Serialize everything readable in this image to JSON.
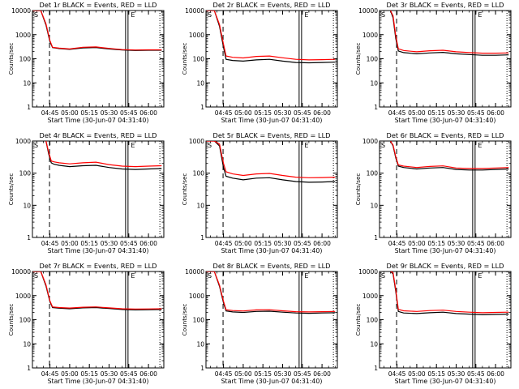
{
  "chart_data": [
    {
      "type": "line",
      "title": "Det 1r BLACK = Events, RED = LLD",
      "xlabel": "Start Time (30-Jun-07 04:31:40)",
      "ylabel": "Counts/sec",
      "yscale": "log",
      "xlim": [
        "04:31:40",
        "06:11:40"
      ],
      "ylim": [
        1,
        10000
      ],
      "x_ticks": [
        "04:45",
        "05:00",
        "05:15",
        "05:30",
        "05:45",
        "06:00"
      ],
      "y_ticks": [
        "1",
        "10",
        "100",
        "1000",
        "10000"
      ],
      "markers": {
        "S": "04:31:40",
        "E": "05:43:30"
      },
      "vlines": [
        {
          "style": "dashed",
          "x": "04:44:40"
        },
        {
          "style": "double",
          "x": "05:43:30"
        },
        {
          "style": "dotted",
          "x": "06:08:40"
        }
      ],
      "series": [
        {
          "color": "#000000",
          "x": [
            "04:32",
            "04:38",
            "04:42",
            "04:45",
            "04:47",
            "04:52",
            "05:00",
            "05:10",
            "05:20",
            "05:30",
            "05:40",
            "05:50",
            "06:00",
            "06:10"
          ],
          "values": [
            10000,
            10000,
            2500,
            500,
            290,
            265,
            245,
            280,
            290,
            255,
            230,
            220,
            225,
            225
          ]
        },
        {
          "color": "#ff0000",
          "x": [
            "04:32",
            "04:38",
            "04:42",
            "04:45",
            "04:47",
            "04:52",
            "05:00",
            "05:10",
            "05:20",
            "05:30",
            "05:40",
            "05:50",
            "06:00",
            "06:10"
          ],
          "values": [
            10000,
            10000,
            2800,
            560,
            300,
            275,
            255,
            300,
            310,
            270,
            240,
            230,
            235,
            235
          ]
        }
      ]
    },
    {
      "type": "line",
      "title": "Det 2r BLACK = Events, RED = LLD",
      "xlabel": "Start Time (30-Jun-07 04:31:40)",
      "ylabel": "Counts/sec",
      "yscale": "log",
      "xlim": [
        "04:31:40",
        "06:11:40"
      ],
      "ylim": [
        1,
        10000
      ],
      "x_ticks": [
        "04:45",
        "05:00",
        "05:15",
        "05:30",
        "05:45",
        "06:00"
      ],
      "y_ticks": [
        "1",
        "10",
        "100",
        "1000",
        "10000"
      ],
      "markers": {
        "S": "04:31:40",
        "E": "05:43:30"
      },
      "vlines": [
        {
          "style": "dashed",
          "x": "04:44:40"
        },
        {
          "style": "double",
          "x": "05:43:30"
        },
        {
          "style": "dotted",
          "x": "06:08:40"
        }
      ],
      "series": [
        {
          "color": "#000000",
          "x": [
            "04:32",
            "04:38",
            "04:42",
            "04:45",
            "04:47",
            "04:52",
            "05:00",
            "05:10",
            "05:20",
            "05:30",
            "05:40",
            "05:50",
            "06:00",
            "06:10"
          ],
          "values": [
            10000,
            10000,
            2200,
            300,
            95,
            85,
            80,
            90,
            95,
            80,
            70,
            68,
            70,
            72
          ]
        },
        {
          "color": "#ff0000",
          "x": [
            "04:32",
            "04:38",
            "04:42",
            "04:45",
            "04:47",
            "04:52",
            "05:00",
            "05:10",
            "05:20",
            "05:30",
            "05:40",
            "05:50",
            "06:00",
            "06:10"
          ],
          "values": [
            10000,
            10000,
            2600,
            400,
            130,
            115,
            108,
            125,
            130,
            110,
            95,
            90,
            92,
            95
          ]
        }
      ]
    },
    {
      "type": "line",
      "title": "Det 3r BLACK = Events, RED = LLD",
      "xlabel": "Start Time (30-Jun-07 04:31:40)",
      "ylabel": "Counts/sec",
      "yscale": "log",
      "xlim": [
        "04:31:40",
        "06:11:40"
      ],
      "ylim": [
        1,
        10000
      ],
      "x_ticks": [
        "04:45",
        "05:00",
        "05:15",
        "05:30",
        "05:45",
        "06:00"
      ],
      "y_ticks": [
        "1",
        "10",
        "100",
        "1000",
        "10000"
      ],
      "markers": {
        "S": "04:31:40",
        "E": "05:43:30"
      },
      "vlines": [
        {
          "style": "dashed",
          "x": "04:44:40"
        },
        {
          "style": "double",
          "x": "05:43:30"
        },
        {
          "style": "dotted",
          "x": "06:08:40"
        }
      ],
      "series": [
        {
          "color": "#000000",
          "x": [
            "04:40",
            "04:42",
            "04:44",
            "04:46",
            "04:50",
            "05:00",
            "05:10",
            "05:20",
            "05:30",
            "05:40",
            "05:50",
            "06:00",
            "06:10"
          ],
          "values": [
            10000,
            5000,
            700,
            210,
            180,
            160,
            175,
            185,
            160,
            150,
            140,
            140,
            145
          ]
        },
        {
          "color": "#ff0000",
          "x": [
            "04:40",
            "04:42",
            "04:44",
            "04:46",
            "04:50",
            "05:00",
            "05:10",
            "05:20",
            "05:30",
            "05:40",
            "05:50",
            "06:00",
            "06:10"
          ],
          "values": [
            10000,
            6000,
            900,
            260,
            220,
            195,
            215,
            225,
            195,
            180,
            170,
            170,
            175
          ]
        }
      ]
    },
    {
      "type": "line",
      "title": "Det 4r BLACK = Events, RED = LLD",
      "xlabel": "Start Time (30-Jun-07 04:31:40)",
      "ylabel": "Counts/sec",
      "yscale": "log",
      "xlim": [
        "04:31:40",
        "06:11:40"
      ],
      "ylim": [
        1,
        1000
      ],
      "x_ticks": [
        "04:45",
        "05:00",
        "05:15",
        "05:30",
        "05:45",
        "06:00"
      ],
      "y_ticks": [
        "1",
        "10",
        "100",
        "1000"
      ],
      "markers": {
        "S": "04:31:40",
        "E": "05:43:30"
      },
      "vlines": [
        {
          "style": "dashed",
          "x": "04:44:40"
        },
        {
          "style": "double",
          "x": "05:43:30"
        },
        {
          "style": "dotted",
          "x": "06:08:40"
        }
      ],
      "series": [
        {
          "color": "#000000",
          "x": [
            "04:42",
            "04:44",
            "04:46",
            "04:48",
            "04:52",
            "05:00",
            "05:10",
            "05:20",
            "05:30",
            "05:40",
            "05:50",
            "06:00",
            "06:10"
          ],
          "values": [
            1000,
            400,
            210,
            190,
            175,
            160,
            170,
            175,
            150,
            135,
            130,
            135,
            140
          ]
        },
        {
          "color": "#ff0000",
          "x": [
            "04:42",
            "04:44",
            "04:46",
            "04:48",
            "04:52",
            "05:00",
            "05:10",
            "05:20",
            "05:30",
            "05:40",
            "05:50",
            "06:00",
            "06:10"
          ],
          "values": [
            1000,
            450,
            240,
            225,
            210,
            195,
            210,
            220,
            185,
            165,
            160,
            165,
            170
          ]
        }
      ]
    },
    {
      "type": "line",
      "title": "Det 5r BLACK = Events, RED = LLD",
      "xlabel": "Start Time (30-Jun-07 04:31:40)",
      "ylabel": "Counts/sec",
      "yscale": "log",
      "xlim": [
        "04:31:40",
        "06:11:40"
      ],
      "ylim": [
        1,
        1000
      ],
      "x_ticks": [
        "04:45",
        "05:00",
        "05:15",
        "05:30",
        "05:45",
        "06:00"
      ],
      "y_ticks": [
        "1",
        "10",
        "100",
        "1000"
      ],
      "markers": {
        "S": "04:31:40",
        "E": "05:43:30"
      },
      "vlines": [
        {
          "style": "dashed",
          "x": "04:44:40"
        },
        {
          "style": "double",
          "x": "05:43:30"
        },
        {
          "style": "dotted",
          "x": "06:08:40"
        }
      ],
      "series": [
        {
          "color": "#000000",
          "x": [
            "04:32",
            "04:38",
            "04:42",
            "04:45",
            "04:47",
            "04:52",
            "05:00",
            "05:10",
            "05:20",
            "05:30",
            "05:40",
            "05:50",
            "06:00",
            "06:10"
          ],
          "values": [
            1000,
            1000,
            700,
            150,
            80,
            70,
            62,
            70,
            72,
            62,
            55,
            52,
            53,
            55
          ]
        },
        {
          "color": "#ff0000",
          "x": [
            "04:32",
            "04:38",
            "04:42",
            "04:45",
            "04:47",
            "04:52",
            "05:00",
            "05:10",
            "05:20",
            "05:30",
            "05:40",
            "05:50",
            "06:00",
            "06:10"
          ],
          "values": [
            1000,
            1000,
            800,
            200,
            110,
            95,
            85,
            95,
            98,
            85,
            75,
            72,
            73,
            75
          ]
        }
      ]
    },
    {
      "type": "line",
      "title": "Det 6r BLACK = Events, RED = LLD",
      "xlabel": "Start Time (30-Jun-07 04:31:40)",
      "ylabel": "Counts/sec",
      "yscale": "log",
      "xlim": [
        "04:31:40",
        "06:11:40"
      ],
      "ylim": [
        1,
        1000
      ],
      "x_ticks": [
        "04:45",
        "05:00",
        "05:15",
        "05:30",
        "05:45",
        "06:00"
      ],
      "y_ticks": [
        "1",
        "10",
        "100",
        "1000"
      ],
      "markers": {
        "S": "04:31:40",
        "E": "05:43:30"
      },
      "vlines": [
        {
          "style": "dashed",
          "x": "04:44:40"
        },
        {
          "style": "double",
          "x": "05:43:30"
        },
        {
          "style": "dotted",
          "x": "06:08:40"
        }
      ],
      "series": [
        {
          "color": "#000000",
          "x": [
            "04:40",
            "04:42",
            "04:44",
            "04:46",
            "04:50",
            "05:00",
            "05:10",
            "05:20",
            "05:30",
            "05:40",
            "05:50",
            "06:00",
            "06:10"
          ],
          "values": [
            1000,
            700,
            300,
            165,
            150,
            135,
            145,
            150,
            130,
            125,
            125,
            130,
            135
          ]
        },
        {
          "color": "#ff0000",
          "x": [
            "04:40",
            "04:42",
            "04:44",
            "04:46",
            "04:50",
            "05:00",
            "05:10",
            "05:20",
            "05:30",
            "05:40",
            "05:50",
            "06:00",
            "06:10"
          ],
          "values": [
            1000,
            750,
            330,
            180,
            165,
            150,
            162,
            168,
            145,
            140,
            140,
            145,
            150
          ]
        }
      ]
    },
    {
      "type": "line",
      "title": "Det 7r BLACK = Events, RED = LLD",
      "xlabel": "Start Time (30-Jun-07 04:31:40)",
      "ylabel": "Counts/sec",
      "yscale": "log",
      "xlim": [
        "04:31:40",
        "06:11:40"
      ],
      "ylim": [
        1,
        10000
      ],
      "x_ticks": [
        "04:45",
        "05:00",
        "05:15",
        "05:30",
        "05:45",
        "06:00"
      ],
      "y_ticks": [
        "1",
        "10",
        "100",
        "1000",
        "10000"
      ],
      "markers": {
        "S": "04:31:40",
        "E": "05:43:30"
      },
      "vlines": [
        {
          "style": "dashed",
          "x": "04:44:40"
        },
        {
          "style": "double",
          "x": "05:43:30"
        },
        {
          "style": "dotted",
          "x": "06:08:40"
        }
      ],
      "series": [
        {
          "color": "#000000",
          "x": [
            "04:32",
            "04:38",
            "04:42",
            "04:45",
            "04:47",
            "04:52",
            "05:00",
            "05:10",
            "05:20",
            "05:30",
            "05:40",
            "05:50",
            "06:00",
            "06:10"
          ],
          "values": [
            10000,
            10000,
            2500,
            550,
            320,
            300,
            285,
            310,
            320,
            290,
            265,
            255,
            260,
            265
          ]
        },
        {
          "color": "#ff0000",
          "x": [
            "04:32",
            "04:38",
            "04:42",
            "04:45",
            "04:47",
            "04:52",
            "05:00",
            "05:10",
            "05:20",
            "05:30",
            "05:40",
            "05:50",
            "06:00",
            "06:10"
          ],
          "values": [
            10000,
            10000,
            2800,
            600,
            340,
            320,
            305,
            330,
            340,
            310,
            285,
            275,
            280,
            285
          ]
        }
      ]
    },
    {
      "type": "line",
      "title": "Det 8r BLACK = Events, RED = LLD",
      "xlabel": "Start Time (30-Jun-07 04:31:40)",
      "ylabel": "Counts/sec",
      "yscale": "log",
      "xlim": [
        "04:31:40",
        "06:11:40"
      ],
      "ylim": [
        1,
        10000
      ],
      "x_ticks": [
        "04:45",
        "05:00",
        "05:15",
        "05:30",
        "05:45",
        "06:00"
      ],
      "y_ticks": [
        "1",
        "10",
        "100",
        "1000",
        "10000"
      ],
      "markers": {
        "S": "04:31:40",
        "E": "05:43:30"
      },
      "vlines": [
        {
          "style": "dashed",
          "x": "04:44:40"
        },
        {
          "style": "double",
          "x": "05:43:30"
        },
        {
          "style": "dotted",
          "x": "06:08:40"
        }
      ],
      "series": [
        {
          "color": "#000000",
          "x": [
            "04:32",
            "04:38",
            "04:42",
            "04:45",
            "04:47",
            "04:52",
            "05:00",
            "05:10",
            "05:20",
            "05:30",
            "05:40",
            "05:50",
            "06:00",
            "06:10"
          ],
          "values": [
            10000,
            10000,
            2400,
            500,
            230,
            210,
            200,
            220,
            225,
            205,
            190,
            185,
            190,
            195
          ]
        },
        {
          "color": "#ff0000",
          "x": [
            "04:32",
            "04:38",
            "04:42",
            "04:45",
            "04:47",
            "04:52",
            "05:00",
            "05:10",
            "05:20",
            "05:30",
            "05:40",
            "05:50",
            "06:00",
            "06:10"
          ],
          "values": [
            10000,
            10000,
            2700,
            580,
            260,
            240,
            230,
            255,
            260,
            235,
            215,
            210,
            215,
            220
          ]
        }
      ]
    },
    {
      "type": "line",
      "title": "Det 9r BLACK = Events, RED = LLD",
      "xlabel": "Start Time (30-Jun-07 04:31:40)",
      "ylabel": "Counts/sec",
      "yscale": "log",
      "xlim": [
        "04:31:40",
        "06:11:40"
      ],
      "ylim": [
        1,
        10000
      ],
      "x_ticks": [
        "04:45",
        "05:00",
        "05:15",
        "05:30",
        "05:45",
        "06:00"
      ],
      "y_ticks": [
        "1",
        "10",
        "100",
        "1000",
        "10000"
      ],
      "markers": {
        "S": "04:31:40",
        "E": "05:43:30"
      },
      "vlines": [
        {
          "style": "dashed",
          "x": "04:44:40"
        },
        {
          "style": "double",
          "x": "05:43:30"
        },
        {
          "style": "dotted",
          "x": "06:08:40"
        }
      ],
      "series": [
        {
          "color": "#000000",
          "x": [
            "04:40",
            "04:42",
            "04:44",
            "04:46",
            "04:50",
            "05:00",
            "05:10",
            "05:20",
            "05:30",
            "05:40",
            "05:50",
            "06:00",
            "06:10"
          ],
          "values": [
            10000,
            8000,
            1500,
            220,
            190,
            180,
            195,
            205,
            180,
            170,
            160,
            165,
            170
          ]
        },
        {
          "color": "#ff0000",
          "x": [
            "04:40",
            "04:42",
            "04:44",
            "04:46",
            "04:50",
            "05:00",
            "05:10",
            "05:20",
            "05:30",
            "05:40",
            "05:50",
            "06:00",
            "06:10"
          ],
          "values": [
            10000,
            9000,
            1800,
            270,
            235,
            220,
            240,
            250,
            220,
            205,
            195,
            200,
            205
          ]
        }
      ]
    }
  ]
}
